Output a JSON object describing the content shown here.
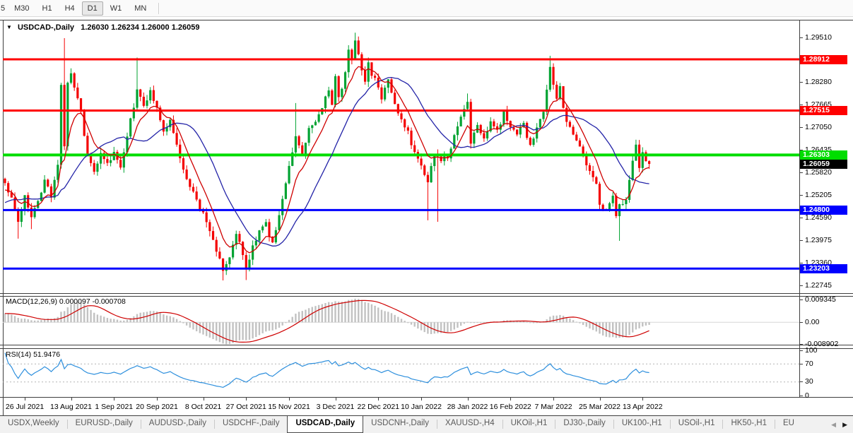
{
  "toolbar": {
    "buttons": [
      "5",
      "M30",
      "H1",
      "H4",
      "D1",
      "W1",
      "MN"
    ],
    "active": "D1"
  },
  "chart": {
    "header_symbol": "USDCAD-,Daily",
    "header_ohlc": "1.26030 1.26234 1.26000 1.26059",
    "collapse_icon": "▼",
    "axis_ticks": [
      {
        "label": "1.29510",
        "value": 1.2951
      },
      {
        "label": "1.28280",
        "value": 1.2828
      },
      {
        "label": "1.27665",
        "value": 1.27665
      },
      {
        "label": "1.27050",
        "value": 1.2705
      },
      {
        "label": "1.26435",
        "value": 1.26435
      },
      {
        "label": "1.25820",
        "value": 1.2582
      },
      {
        "label": "1.25205",
        "value": 1.25205
      },
      {
        "label": "1.24590",
        "value": 1.2459
      },
      {
        "label": "1.23975",
        "value": 1.23975
      },
      {
        "label": "1.23360",
        "value": 1.2336
      },
      {
        "label": "1.22745",
        "value": 1.22745
      }
    ],
    "levels": [
      {
        "label": "1.28912",
        "value": 1.28912,
        "color": "#ff0000",
        "width": 3
      },
      {
        "label": "1.27515",
        "value": 1.27515,
        "color": "#ff0000",
        "width": 3
      },
      {
        "label": "1.26303",
        "value": 1.26303,
        "color": "#00dd00",
        "width": 4
      },
      {
        "label": "1.24800",
        "value": 1.248,
        "color": "#0000ff",
        "width": 3
      },
      {
        "label": "1.23203",
        "value": 1.23203,
        "color": "#0000ff",
        "width": 3
      }
    ],
    "current_price": {
      "label": "1.26059",
      "value": 1.26059,
      "bg": "#000000"
    },
    "candles": {
      "count": 196,
      "up_color": "#00a332",
      "down_color": "#f40000",
      "anchors": [
        [
          0,
          1.2552
        ],
        [
          2,
          1.251
        ],
        [
          4,
          1.2455
        ],
        [
          6,
          1.2518
        ],
        [
          8,
          1.2462
        ],
        [
          10,
          1.2505
        ],
        [
          12,
          1.2555
        ],
        [
          14,
          1.2522
        ],
        [
          16,
          1.26
        ],
        [
          17,
          1.2828
        ],
        [
          18,
          1.2652
        ],
        [
          19,
          1.2825
        ],
        [
          20,
          1.2846
        ],
        [
          21,
          1.281
        ],
        [
          23,
          1.2748
        ],
        [
          25,
          1.2622
        ],
        [
          27,
          1.2582
        ],
        [
          29,
          1.2638
        ],
        [
          31,
          1.2602
        ],
        [
          33,
          1.2633
        ],
        [
          35,
          1.2598
        ],
        [
          37,
          1.2688
        ],
        [
          39,
          1.2758
        ],
        [
          40,
          1.2812
        ],
        [
          42,
          1.2768
        ],
        [
          44,
          1.28
        ],
        [
          46,
          1.2752
        ],
        [
          48,
          1.27
        ],
        [
          50,
          1.272
        ],
        [
          52,
          1.2655
        ],
        [
          54,
          1.259
        ],
        [
          56,
          1.254
        ],
        [
          58,
          1.2508
        ],
        [
          60,
          1.247
        ],
        [
          62,
          1.2418
        ],
        [
          64,
          1.2368
        ],
        [
          66,
          1.232
        ],
        [
          68,
          1.2355
        ],
        [
          70,
          1.2422
        ],
        [
          72,
          1.236
        ],
        [
          73,
          1.2322
        ],
        [
          75,
          1.238
        ],
        [
          77,
          1.242
        ],
        [
          79,
          1.244
        ],
        [
          81,
          1.2388
        ],
        [
          83,
          1.2468
        ],
        [
          85,
          1.2558
        ],
        [
          86,
          1.26
        ],
        [
          88,
          1.268
        ],
        [
          90,
          1.2632
        ],
        [
          92,
          1.27
        ],
        [
          94,
          1.2716
        ],
        [
          96,
          1.2758
        ],
        [
          98,
          1.2808
        ],
        [
          99,
          1.2772
        ],
        [
          100,
          1.2838
        ],
        [
          101,
          1.2782
        ],
        [
          103,
          1.285
        ],
        [
          104,
          1.2916
        ],
        [
          105,
          1.2888
        ],
        [
          106,
          1.2938
        ],
        [
          108,
          1.2868
        ],
        [
          109,
          1.2828
        ],
        [
          110,
          1.2886
        ],
        [
          111,
          1.2852
        ],
        [
          113,
          1.2818
        ],
        [
          114,
          1.278
        ],
        [
          116,
          1.2834
        ],
        [
          117,
          1.2798
        ],
        [
          118,
          1.2768
        ],
        [
          120,
          1.2728
        ],
        [
          122,
          1.269
        ],
        [
          124,
          1.2636
        ],
        [
          126,
          1.2598
        ],
        [
          128,
          1.2558
        ],
        [
          130,
          1.2638
        ],
        [
          132,
          1.262
        ],
        [
          134,
          1.2618
        ],
        [
          136,
          1.269
        ],
        [
          138,
          1.273
        ],
        [
          140,
          1.2782
        ],
        [
          141,
          1.266
        ],
        [
          143,
          1.2708
        ],
        [
          145,
          1.2682
        ],
        [
          147,
          1.2722
        ],
        [
          149,
          1.2692
        ],
        [
          151,
          1.2748
        ],
        [
          153,
          1.2702
        ],
        [
          155,
          1.2682
        ],
        [
          157,
          1.2718
        ],
        [
          159,
          1.2652
        ],
        [
          161,
          1.27
        ],
        [
          163,
          1.2748
        ],
        [
          164,
          1.2808
        ],
        [
          165,
          1.2868
        ],
        [
          166,
          1.2828
        ],
        [
          167,
          1.2788
        ],
        [
          168,
          1.2818
        ],
        [
          169,
          1.2752
        ],
        [
          171,
          1.27
        ],
        [
          173,
          1.2662
        ],
        [
          175,
          1.263
        ],
        [
          177,
          1.259
        ],
        [
          179,
          1.2548
        ],
        [
          180,
          1.2502
        ],
        [
          182,
          1.2478
        ],
        [
          184,
          1.2512
        ],
        [
          185,
          1.2462
        ],
        [
          186,
          1.2488
        ],
        [
          188,
          1.2502
        ],
        [
          189,
          1.2562
        ],
        [
          190,
          1.2622
        ],
        [
          191,
          1.2658
        ],
        [
          192,
          1.2602
        ],
        [
          193,
          1.2642
        ],
        [
          194,
          1.2618
        ],
        [
          195,
          1.2606
        ]
      ],
      "spikes_high": {
        "18": 1.2949,
        "40": 1.2896,
        "88": 1.2772,
        "106": 1.2964,
        "140": 1.2798,
        "165": 1.2901,
        "191": 1.2672
      },
      "spikes_low": {
        "4": 1.2402,
        "8": 1.2428,
        "66": 1.2288,
        "73": 1.2289,
        "128": 1.2452,
        "131": 1.2448,
        "186": 1.2396
      }
    },
    "ma_fast": {
      "color": "#cf0000",
      "period": 8
    },
    "ma_slow": {
      "color": "#2424a8",
      "period": 20
    },
    "dates": [
      {
        "label": "26 Jul 2021",
        "bar": 6
      },
      {
        "label": "13 Aug 2021",
        "bar": 20
      },
      {
        "label": "1 Sep 2021",
        "bar": 33
      },
      {
        "label": "20 Sep 2021",
        "bar": 46
      },
      {
        "label": "8 Oct 2021",
        "bar": 60
      },
      {
        "label": "27 Oct 2021",
        "bar": 73
      },
      {
        "label": "15 Nov 2021",
        "bar": 86
      },
      {
        "label": "3 Dec 2021",
        "bar": 100
      },
      {
        "label": "22 Dec 2021",
        "bar": 113
      },
      {
        "label": "10 Jan 2022",
        "bar": 126
      },
      {
        "label": "28 Jan 2022",
        "bar": 140
      },
      {
        "label": "16 Feb 2022",
        "bar": 153
      },
      {
        "label": "7 Mar 2022",
        "bar": 166
      },
      {
        "label": "25 Mar 2022",
        "bar": 180
      },
      {
        "label": "13 Apr 2022",
        "bar": 193
      }
    ]
  },
  "macd": {
    "header": "MACD(12,26,9) 0.000097 -0.000708",
    "fast": 12,
    "slow": 26,
    "signal": 9,
    "hist_color": "#c2c2c2",
    "signal_color": "#cf0000",
    "axis": [
      {
        "label": "0.009345",
        "value": 0.009345
      },
      {
        "label": "0.00",
        "value": 0
      },
      {
        "label": "-0.008902",
        "value": -0.008902
      }
    ]
  },
  "rsi": {
    "header": "RSI(14) 51.9476",
    "period": 14,
    "color": "#2d8fdd",
    "level_lines": [
      70,
      30
    ],
    "axis": [
      {
        "label": "100",
        "value": 100
      },
      {
        "label": "70",
        "value": 70
      },
      {
        "label": "30",
        "value": 30
      },
      {
        "label": "0",
        "value": 0
      }
    ]
  },
  "tabs": {
    "items": [
      {
        "label": "USDX,Weekly",
        "active": false
      },
      {
        "label": "EURUSD-,Daily",
        "active": false
      },
      {
        "label": "AUDUSD-,Daily",
        "active": false
      },
      {
        "label": "USDCHF-,Daily",
        "active": false
      },
      {
        "label": "USDCAD-,Daily",
        "active": true
      },
      {
        "label": "USDCNH-,Daily",
        "active": false
      },
      {
        "label": "XAUUSD-,H4",
        "active": false
      },
      {
        "label": "UKOil-,H1",
        "active": false
      },
      {
        "label": "DJ30-,Daily",
        "active": false
      },
      {
        "label": "UK100-,H1",
        "active": false
      },
      {
        "label": "USOil-,H1",
        "active": false
      },
      {
        "label": "HK50-,H1",
        "active": false
      },
      {
        "label": "EU",
        "active": false
      }
    ],
    "scroll_left": "◀",
    "scroll_right": "▶"
  }
}
